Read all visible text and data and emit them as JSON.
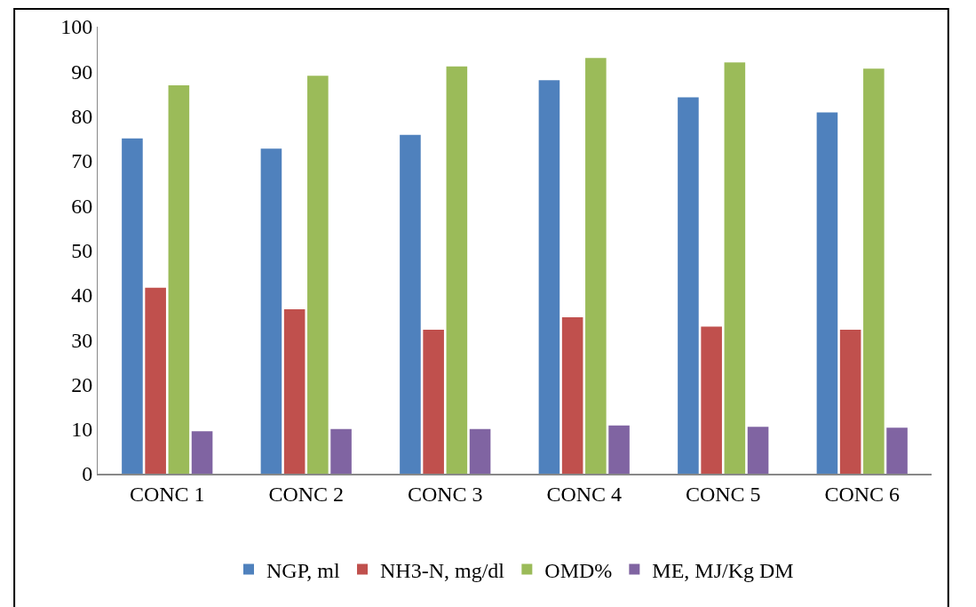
{
  "chart_data": {
    "type": "bar",
    "categories": [
      "CONC 1",
      "CONC 2",
      "CONC 3",
      "CONC 4",
      "CONC 5",
      "CONC 6"
    ],
    "series": [
      {
        "name": "NGP, ml",
        "color": "#4f81bd",
        "values": [
          75.0,
          72.7,
          75.8,
          88.0,
          84.2,
          80.8
        ]
      },
      {
        "name": "NH3-N, mg/dl",
        "color": "#c0504d",
        "values": [
          41.6,
          36.8,
          32.2,
          35.0,
          32.9,
          32.2
        ]
      },
      {
        "name": "OMD%",
        "color": "#9bbb59",
        "values": [
          86.9,
          89.0,
          91.1,
          93.0,
          92.0,
          90.6
        ]
      },
      {
        "name": "ME, MJ/Kg DM",
        "color": "#8064a2",
        "values": [
          9.5,
          10.0,
          10.0,
          10.8,
          10.5,
          10.3
        ]
      }
    ],
    "ylim": [
      0,
      100
    ],
    "yticks": [
      0,
      10,
      20,
      30,
      40,
      50,
      60,
      70,
      80,
      90,
      100
    ],
    "legend": "bottom"
  }
}
